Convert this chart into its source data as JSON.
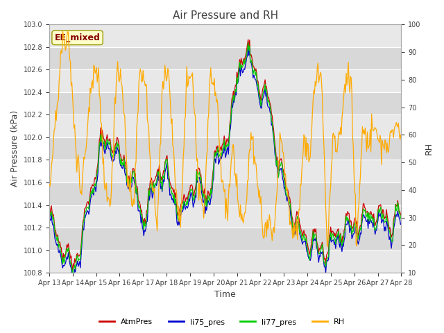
{
  "title": "Air Pressure and RH",
  "xlabel": "Time",
  "ylabel_left": "Air Pressure (kPa)",
  "ylabel_right": "RH",
  "ylim_left": [
    100.8,
    103.0
  ],
  "ylim_right": [
    10,
    100
  ],
  "yticks_left": [
    100.8,
    101.0,
    101.2,
    101.4,
    101.6,
    101.8,
    102.0,
    102.2,
    102.4,
    102.6,
    102.8,
    103.0
  ],
  "yticks_right": [
    10,
    20,
    30,
    40,
    50,
    60,
    70,
    80,
    90,
    100
  ],
  "x_tick_labels": [
    "Apr 13",
    "Apr 14",
    "Apr 15",
    "Apr 16",
    "Apr 17",
    "Apr 18",
    "Apr 19",
    "Apr 20",
    "Apr 21",
    "Apr 22",
    "Apr 23",
    "Apr 24",
    "Apr 25",
    "Apr 26",
    "Apr 27",
    "Apr 28"
  ],
  "legend_labels": [
    "AtmPres",
    "li75_pres",
    "li77_pres",
    "RH"
  ],
  "line_colors": [
    "#cc0000",
    "#0000cc",
    "#00cc00",
    "#ffaa00"
  ],
  "label_box_text": "EE_mixed",
  "label_box_facecolor": "#ffffcc",
  "label_box_edgecolor": "#999900",
  "label_box_textcolor": "#880000",
  "fig_facecolor": "#ffffff",
  "axes_facecolor": "#ffffff",
  "band_colors": [
    "#e8e8e8",
    "#d8d8d8"
  ],
  "grid_color": "#ffffff",
  "text_color": "#404040",
  "title_fontsize": 11,
  "axis_label_fontsize": 9,
  "tick_fontsize": 7,
  "legend_fontsize": 8
}
